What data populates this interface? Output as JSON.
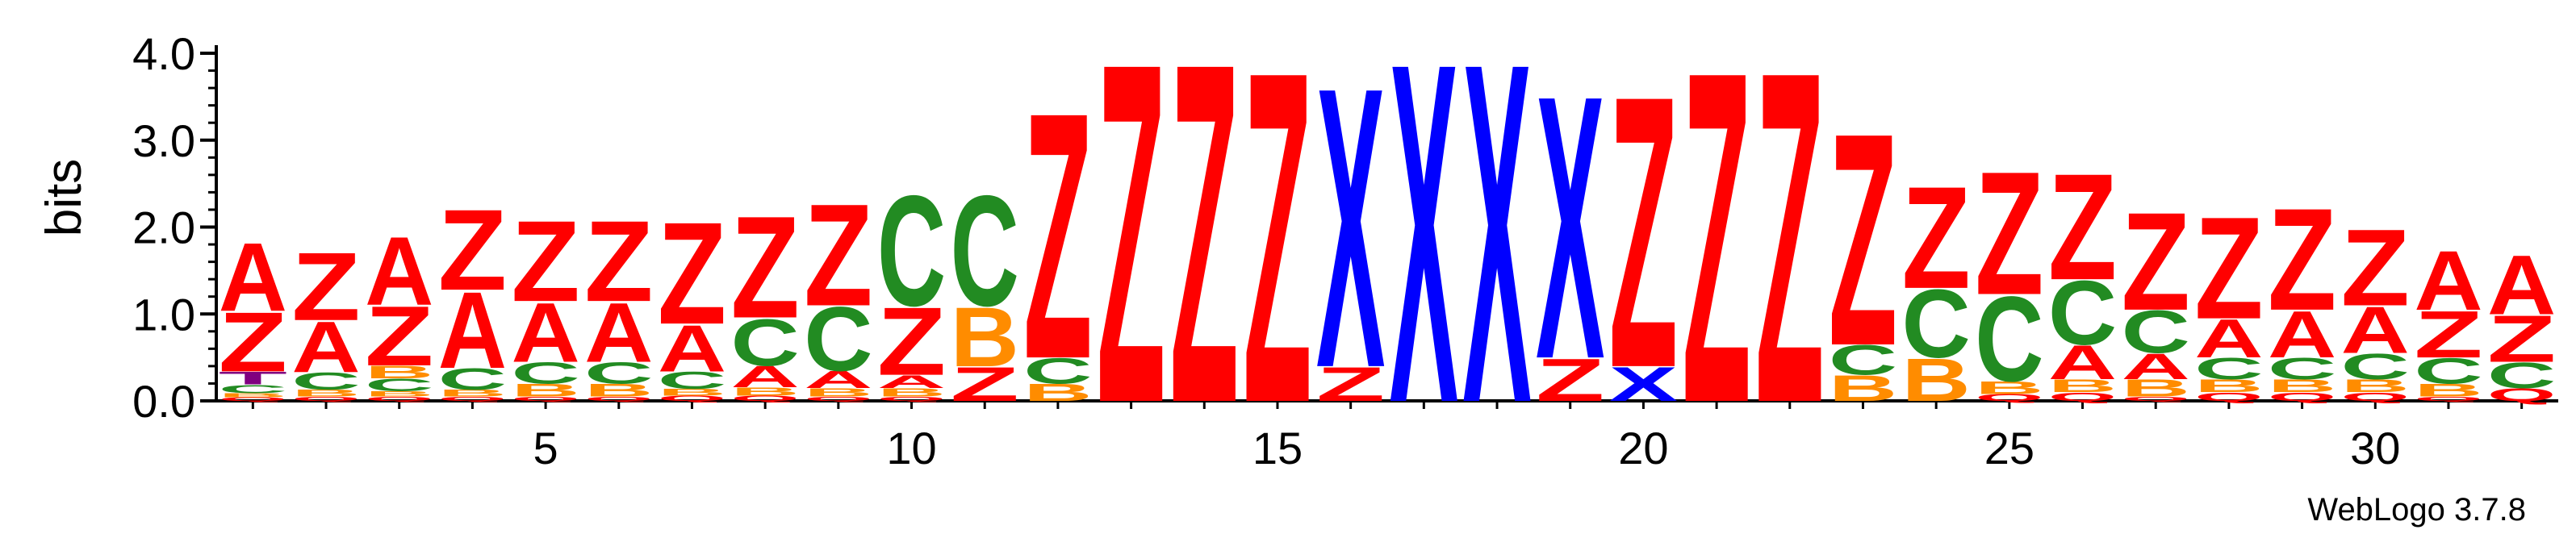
{
  "chart_data": {
    "type": "sequence-logo",
    "title": "",
    "xlabel": "",
    "ylabel": "bits",
    "ylim": [
      0,
      4.0
    ],
    "yticks": [
      "0.0",
      "1.0",
      "2.0",
      "3.0",
      "4.0"
    ],
    "xticks": [
      5,
      10,
      15,
      20,
      25,
      30
    ],
    "positions": 32,
    "colors": {
      "Z": "#ff0000",
      "A": "#ff0000",
      "X": "#0000ff",
      "C": "#228b22",
      "B": "#ff8c00",
      "Q": "#ff0000",
      "T": "#800080"
    },
    "columns": [
      [
        [
          "Q",
          0.04
        ],
        [
          "B",
          0.05
        ],
        [
          "C",
          0.1
        ],
        [
          "T",
          0.15
        ],
        [
          "Z",
          0.7
        ],
        [
          "A",
          0.8
        ]
      ],
      [
        [
          "Q",
          0.05
        ],
        [
          "B",
          0.08
        ],
        [
          "C",
          0.2
        ],
        [
          "A",
          0.6
        ],
        [
          "Z",
          0.8
        ]
      ],
      [
        [
          "Q",
          0.05
        ],
        [
          "B",
          0.06
        ],
        [
          "C",
          0.15
        ],
        [
          "B",
          0.15
        ],
        [
          "Z",
          0.7
        ],
        [
          "A",
          0.8
        ]
      ],
      [
        [
          "Q",
          0.05
        ],
        [
          "B",
          0.08
        ],
        [
          "C",
          0.25
        ],
        [
          "A",
          0.9
        ],
        [
          "Z",
          0.95
        ]
      ],
      [
        [
          "Q",
          0.05
        ],
        [
          "B",
          0.15
        ],
        [
          "C",
          0.25
        ],
        [
          "A",
          0.7
        ],
        [
          "Z",
          0.95
        ]
      ],
      [
        [
          "Q",
          0.05
        ],
        [
          "B",
          0.15
        ],
        [
          "C",
          0.25
        ],
        [
          "A",
          0.7
        ],
        [
          "Z",
          0.95
        ]
      ],
      [
        [
          "Q",
          0.06
        ],
        [
          "B",
          0.08
        ],
        [
          "C",
          0.2
        ],
        [
          "A",
          0.55
        ],
        [
          "Z",
          1.2
        ]
      ],
      [
        [
          "Q",
          0.06
        ],
        [
          "B",
          0.1
        ],
        [
          "A",
          0.25
        ],
        [
          "C",
          0.55
        ],
        [
          "Z",
          1.2
        ]
      ],
      [
        [
          "Q",
          0.05
        ],
        [
          "B",
          0.1
        ],
        [
          "A",
          0.2
        ],
        [
          "C",
          0.75
        ],
        [
          "Z",
          1.2
        ]
      ],
      [
        [
          "Q",
          0.05
        ],
        [
          "B",
          0.1
        ],
        [
          "A",
          0.15
        ],
        [
          "Z",
          0.8
        ],
        [
          "C",
          1.3
        ]
      ],
      [
        [
          "Z",
          0.4
        ],
        [
          "B",
          0.7
        ],
        [
          "C",
          1.3
        ]
      ],
      [
        [
          "B",
          0.2
        ],
        [
          "C",
          0.3
        ],
        [
          "Z",
          2.9
        ]
      ],
      [
        [
          "Z",
          4.0
        ]
      ],
      [
        [
          "Z",
          4.0
        ]
      ],
      [
        [
          "Z",
          3.9
        ]
      ],
      [
        [
          "Z",
          0.4
        ],
        [
          "X",
          3.3
        ]
      ],
      [
        [
          "X",
          4.0
        ]
      ],
      [
        [
          "X",
          4.0
        ]
      ],
      [
        [
          "Z",
          0.5
        ],
        [
          "X",
          3.1
        ]
      ],
      [
        [
          "X",
          0.4
        ],
        [
          "Z",
          3.2
        ]
      ],
      [
        [
          "Z",
          3.9
        ]
      ],
      [
        [
          "Z",
          3.9
        ]
      ],
      [
        [
          "B",
          0.3
        ],
        [
          "C",
          0.35
        ],
        [
          "Z",
          2.5
        ]
      ],
      [
        [
          "B",
          0.5
        ],
        [
          "C",
          0.8
        ],
        [
          "Z",
          1.2
        ]
      ],
      [
        [
          "Q",
          0.08
        ],
        [
          "B",
          0.15
        ],
        [
          "C",
          1.0
        ],
        [
          "Z",
          1.45
        ]
      ],
      [
        [
          "Q",
          0.1
        ],
        [
          "B",
          0.15
        ],
        [
          "A",
          0.4
        ],
        [
          "C",
          0.75
        ],
        [
          "Z",
          1.25
        ]
      ],
      [
        [
          "Q",
          0.05
        ],
        [
          "B",
          0.2
        ],
        [
          "A",
          0.3
        ],
        [
          "C",
          0.5
        ],
        [
          "Z",
          1.15
        ]
      ],
      [
        [
          "Q",
          0.1
        ],
        [
          "B",
          0.15
        ],
        [
          "C",
          0.25
        ],
        [
          "A",
          0.45
        ],
        [
          "Z",
          1.2
        ]
      ],
      [
        [
          "Q",
          0.1
        ],
        [
          "B",
          0.15
        ],
        [
          "C",
          0.25
        ],
        [
          "A",
          0.55
        ],
        [
          "Z",
          1.2
        ]
      ],
      [
        [
          "Q",
          0.1
        ],
        [
          "B",
          0.15
        ],
        [
          "C",
          0.3
        ],
        [
          "A",
          0.55
        ],
        [
          "Z",
          0.9
        ]
      ],
      [
        [
          "Q",
          0.05
        ],
        [
          "B",
          0.15
        ],
        [
          "C",
          0.3
        ],
        [
          "Z",
          0.55
        ],
        [
          "A",
          0.7
        ]
      ],
      [
        [
          "Q",
          0.15
        ],
        [
          "C",
          0.3
        ],
        [
          "Z",
          0.55
        ],
        [
          "A",
          0.7
        ]
      ]
    ],
    "footer": "WebLogo 3.7.8"
  }
}
